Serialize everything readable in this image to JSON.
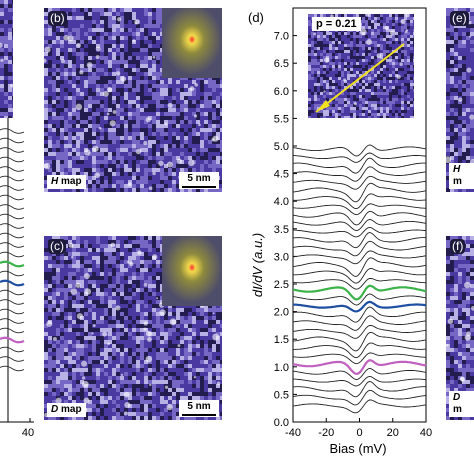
{
  "panels": {
    "b": {
      "letter": "(b)",
      "map_label": "map",
      "map_symbol": "H",
      "scale": "5 nm"
    },
    "c": {
      "letter": "(c)",
      "map_label": "map",
      "map_symbol": "D",
      "scale": "5 nm"
    },
    "e": {
      "letter": "(e)",
      "map_symbol": "H",
      "map_label_partial": "m"
    },
    "f": {
      "letter": "(f)",
      "map_symbol": "D",
      "map_label_partial": "m"
    },
    "left_partial": {
      "xtick": "40"
    }
  },
  "colors": {
    "map_dark": "#1a1540",
    "map_mid": "#5a4aa8",
    "map_light": "#c9c3f0",
    "inset_bg": "#6b6a3e",
    "inset_glow": "#f3d94a",
    "curve_black": "#222222",
    "curve_green": "#3cb34a",
    "curve_blue": "#1f4fa0",
    "curve_magenta": "#c060c0",
    "arrow_yellow": "#f0e020"
  },
  "chart_data": {
    "type": "line",
    "panel_letter": "(d)",
    "inset_label": "p = 0.21",
    "xlabel": "Bias (mV)",
    "ylabel": "dI/dV (a.u.)",
    "xlim": [
      -40,
      40
    ],
    "ylim": [
      0.0,
      7.5
    ],
    "xticks": [
      "-40",
      "-20",
      "0",
      "20",
      "40"
    ],
    "yticks": [
      "0.0",
      "0.5",
      "1.0",
      "1.5",
      "2.0",
      "2.5",
      "3.0",
      "3.5",
      "4.0",
      "4.5",
      "5.0",
      "5.5",
      "6.0",
      "6.5",
      "7.0"
    ],
    "offsets": [
      0.3,
      0.45,
      0.6,
      0.75,
      0.9,
      1.05,
      1.2,
      1.35,
      1.5,
      1.65,
      1.8,
      1.95,
      2.1,
      2.25,
      2.4,
      2.55,
      2.7,
      2.85,
      3.0,
      3.15,
      3.3,
      3.45,
      3.6,
      3.75,
      3.9,
      4.05,
      4.2,
      4.35,
      4.5,
      4.65,
      4.8,
      4.95
    ],
    "highlighted": {
      "green": 2.4,
      "blue": 2.1,
      "magenta": 1.05
    }
  }
}
